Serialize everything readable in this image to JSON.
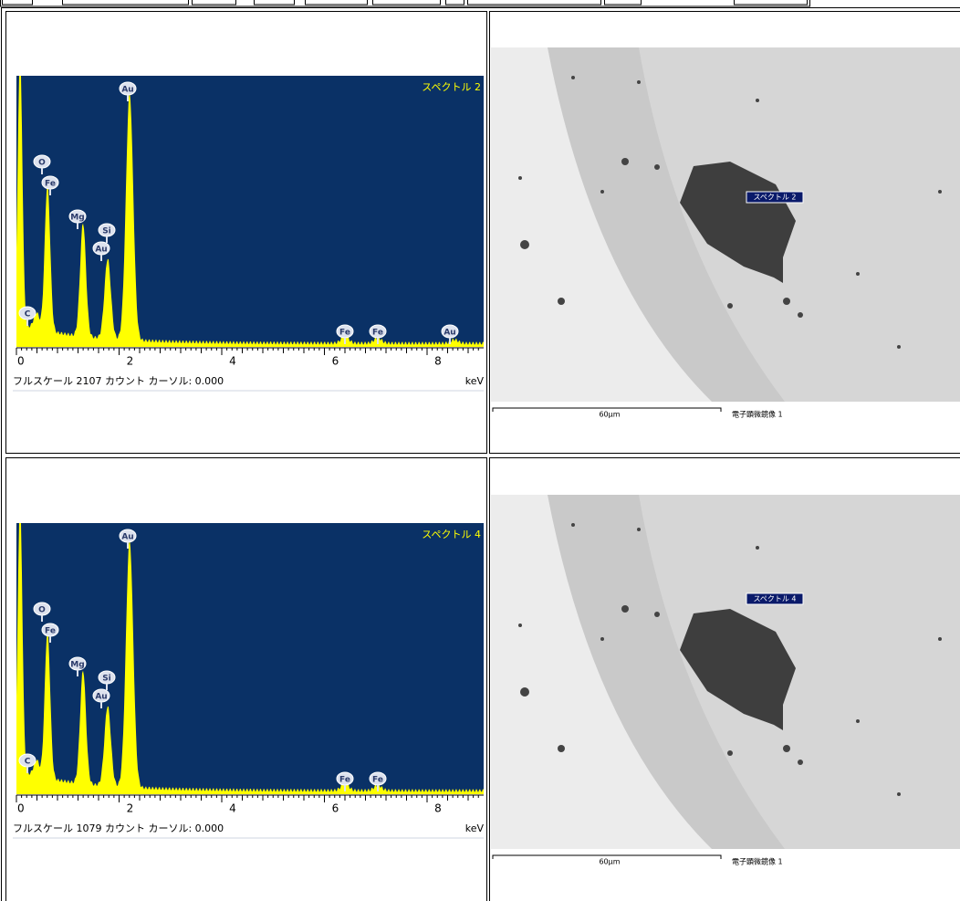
{
  "panels": [
    {
      "spectrum": {
        "label": "スペクトル 2",
        "xticks": [
          0,
          2,
          4,
          6,
          8
        ],
        "unit": "keV",
        "footer": "フルスケール 2107 カウント カーソル: 0.000",
        "peaks": [
          "Au",
          "O",
          "Fe",
          "Mg",
          "Si",
          "Au",
          "C",
          "Fe",
          "Fe",
          "Au"
        ]
      },
      "image": {
        "label": "スペクトル 2",
        "scale": "60μm",
        "caption": "電子顕微鏡像 1"
      }
    },
    {
      "spectrum": {
        "label": "スペクトル 4",
        "xticks": [
          0,
          2,
          4,
          6,
          8
        ],
        "unit": "keV",
        "footer": "フルスケール 1079 カウント カーソル: 0.000",
        "peaks": [
          "Au",
          "O",
          "Fe",
          "Mg",
          "Si",
          "Au",
          "C",
          "Fe",
          "Fe"
        ]
      },
      "image": {
        "label": "スペクトル 4",
        "scale": "60μm",
        "caption": "電子顕微鏡像 1"
      }
    }
  ]
}
